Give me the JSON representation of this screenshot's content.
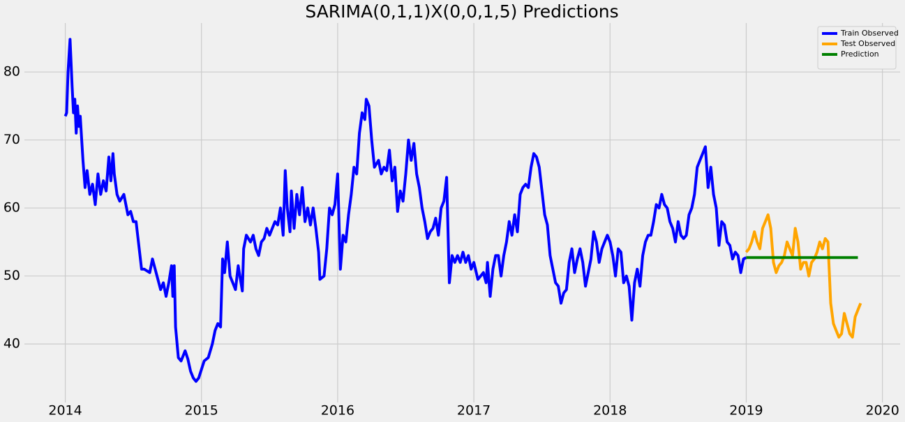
{
  "chart_data": {
    "type": "line",
    "title": "SARIMA(0,1,1)X(0,0,1,5) Predictions",
    "xlim": [
      2013.7,
      2020.13
    ],
    "xticks": [
      2014,
      2015,
      2016,
      2017,
      2018,
      2019,
      2020
    ],
    "ylim": [
      31.4,
      87.2
    ],
    "yticks": [
      40,
      50,
      60,
      70,
      80
    ],
    "grid": true,
    "legend": "upper right",
    "series": [
      {
        "name": "Train Observed",
        "color": "#0000ff",
        "x": [
          2014.0,
          2014.01,
          2014.02,
          2014.035,
          2014.05,
          2014.06,
          2014.07,
          2014.08,
          2014.09,
          2014.1,
          2014.11,
          2014.13,
          2014.145,
          2014.16,
          2014.18,
          2014.2,
          2014.22,
          2014.24,
          2014.26,
          2014.28,
          2014.3,
          2014.32,
          2014.335,
          2014.35,
          2014.36,
          2014.38,
          2014.4,
          2014.43,
          2014.46,
          2014.48,
          2014.5,
          2014.52,
          2014.56,
          2014.58,
          2014.62,
          2014.64,
          2014.66,
          2014.7,
          2014.72,
          2014.74,
          2014.76,
          2014.78,
          2014.79,
          2014.8,
          2014.81,
          2014.83,
          2014.85,
          2014.87,
          2014.88,
          2014.9,
          2014.92,
          2014.94,
          2014.96,
          2014.98,
          2015.02,
          2015.05,
          2015.08,
          2015.1,
          2015.12,
          2015.14,
          2015.155,
          2015.17,
          2015.19,
          2015.21,
          2015.23,
          2015.25,
          2015.27,
          2015.3,
          2015.31,
          2015.33,
          2015.36,
          2015.38,
          2015.4,
          2015.42,
          2015.44,
          2015.46,
          2015.48,
          2015.5,
          2015.52,
          2015.54,
          2015.56,
          2015.58,
          2015.6,
          2015.615,
          2015.63,
          2015.65,
          2015.66,
          2015.68,
          2015.7,
          2015.72,
          2015.74,
          2015.76,
          2015.78,
          2015.8,
          2015.82,
          2015.84,
          2015.86,
          2015.87,
          2015.9,
          2015.92,
          2015.94,
          2015.96,
          2015.98,
          2016.0,
          2016.02,
          2016.04,
          2016.06,
          2016.08,
          2016.1,
          2016.12,
          2016.14,
          2016.16,
          2016.18,
          2016.2,
          2016.21,
          2016.23,
          2016.25,
          2016.27,
          2016.3,
          2016.32,
          2016.34,
          2016.36,
          2016.38,
          2016.4,
          2016.42,
          2016.44,
          2016.46,
          2016.48,
          2016.5,
          2016.52,
          2016.54,
          2016.56,
          2016.58,
          2016.6,
          2016.62,
          2016.64,
          2016.66,
          2016.68,
          2016.7,
          2016.72,
          2016.74,
          2016.76,
          2016.78,
          2016.8,
          2016.82,
          2016.84,
          2016.86,
          2016.88,
          2016.9,
          2016.92,
          2016.94,
          2016.96,
          2016.98,
          2017.0,
          2017.03,
          2017.05,
          2017.07,
          2017.09,
          2017.1,
          2017.12,
          2017.14,
          2017.16,
          2017.18,
          2017.2,
          2017.22,
          2017.24,
          2017.26,
          2017.28,
          2017.3,
          2017.32,
          2017.34,
          2017.36,
          2017.38,
          2017.4,
          2017.42,
          2017.44,
          2017.46,
          2017.48,
          2017.5,
          2017.52,
          2017.54,
          2017.56,
          2017.58,
          2017.6,
          2017.62,
          2017.64,
          2017.66,
          2017.68,
          2017.7,
          2017.72,
          2017.74,
          2017.76,
          2017.78,
          2017.8,
          2017.82,
          2017.84,
          2017.86,
          2017.88,
          2017.9,
          2017.92,
          2017.94,
          2017.96,
          2017.98,
          2018.0,
          2018.02,
          2018.04,
          2018.06,
          2018.08,
          2018.1,
          2018.12,
          2018.14,
          2018.16,
          2018.18,
          2018.2,
          2018.22,
          2018.24,
          2018.26,
          2018.28,
          2018.3,
          2018.32,
          2018.34,
          2018.36,
          2018.38,
          2018.4,
          2018.42,
          2018.44,
          2018.46,
          2018.48,
          2018.5,
          2018.52,
          2018.54,
          2018.56,
          2018.58,
          2018.6,
          2018.62,
          2018.64,
          2018.66,
          2018.68,
          2018.7,
          2018.72,
          2018.74,
          2018.76,
          2018.78,
          2018.8,
          2018.82,
          2018.84,
          2018.86,
          2018.88,
          2018.9,
          2018.92,
          2018.94,
          2018.96,
          2018.98,
          2019.0
        ],
        "values": [
          73.5,
          74,
          80,
          84.8,
          78,
          74,
          76,
          71,
          75,
          72,
          73.5,
          67,
          63,
          65.5,
          62,
          63.5,
          60.5,
          65,
          62,
          64,
          62.5,
          67.5,
          64,
          68,
          65,
          62,
          61,
          62,
          59,
          59.5,
          58,
          58,
          51,
          51,
          50.5,
          52.5,
          51,
          48,
          49,
          47,
          49,
          51.5,
          47,
          51.5,
          42.5,
          38,
          37.5,
          38.5,
          39,
          37.8,
          36,
          35,
          34.5,
          35,
          37.5,
          38,
          40,
          42,
          43,
          42.5,
          52.5,
          50.5,
          55,
          50,
          49,
          48,
          51.5,
          47.8,
          54,
          56,
          55,
          56,
          54,
          53,
          55,
          55.5,
          57,
          56,
          57,
          58,
          57.5,
          60,
          56,
          65.5,
          60,
          56.5,
          62.5,
          57,
          62,
          59,
          63,
          58,
          60,
          57.5,
          60,
          57,
          53.5,
          49.5,
          50,
          54,
          60,
          59,
          60.5,
          65,
          51,
          56,
          55,
          59,
          62,
          66,
          65,
          71,
          74,
          73,
          76,
          75,
          70,
          66,
          67,
          65,
          66,
          65.5,
          68.5,
          64,
          66,
          59.5,
          62.5,
          61,
          65,
          70,
          67,
          69.5,
          65,
          63,
          60,
          58,
          55.5,
          56.5,
          57,
          58.5,
          56,
          60,
          61,
          64.5,
          49,
          53,
          52,
          53,
          52,
          53.5,
          52,
          53,
          51,
          52,
          49.5,
          50,
          50.5,
          49,
          52,
          47,
          51,
          53,
          53,
          50,
          53,
          55,
          58,
          56,
          59,
          56.5,
          62,
          63,
          63.5,
          63,
          66,
          68,
          67.5,
          66,
          62.5,
          59,
          57.5,
          53,
          51,
          49,
          48.5,
          46,
          47.5,
          48,
          52,
          54,
          50.5,
          52.5,
          54,
          52,
          48.5,
          50.5,
          52.5,
          56.5,
          55,
          52,
          54,
          55,
          56,
          55,
          53,
          50,
          54,
          53.5,
          49,
          50,
          48.5,
          43.5,
          49,
          51,
          48.5,
          53,
          55,
          56,
          56,
          58,
          60.5,
          60,
          62,
          60.5,
          60,
          58,
          57,
          55,
          58,
          56,
          55.5,
          56,
          59,
          60,
          62,
          66,
          67,
          68,
          69,
          63,
          66,
          62,
          60,
          54.5,
          58,
          57.5,
          55,
          54.5,
          52.5,
          53.5,
          53,
          50.5,
          52.5,
          52.7
        ]
      },
      {
        "name": "Test Observed",
        "color": "#ffa500",
        "x": [
          2019.0,
          2019.02,
          2019.04,
          2019.06,
          2019.08,
          2019.1,
          2019.12,
          2019.14,
          2019.16,
          2019.18,
          2019.2,
          2019.22,
          2019.24,
          2019.26,
          2019.28,
          2019.3,
          2019.32,
          2019.34,
          2019.36,
          2019.38,
          2019.4,
          2019.42,
          2019.44,
          2019.46,
          2019.48,
          2019.5,
          2019.52,
          2019.54,
          2019.56,
          2019.58,
          2019.6,
          2019.62,
          2019.64,
          2019.66,
          2019.68,
          2019.7,
          2019.72,
          2019.74,
          2019.76,
          2019.78,
          2019.8,
          2019.82,
          2019.84
        ],
        "values": [
          53.5,
          54,
          55,
          56.5,
          55,
          54,
          57,
          58,
          59,
          57,
          52,
          50.5,
          51.5,
          52,
          53,
          55,
          54,
          53,
          57,
          55,
          51,
          52,
          52,
          50,
          52,
          52.5,
          53.5,
          55,
          54,
          55.5,
          55,
          46,
          43,
          42,
          41,
          41.5,
          44.5,
          43,
          41.5,
          41,
          44,
          45,
          46
        ]
      },
      {
        "name": "Prediction",
        "color": "#008000",
        "x": [
          2019.0,
          2019.82
        ],
        "values": [
          52.7,
          52.7
        ]
      }
    ]
  }
}
